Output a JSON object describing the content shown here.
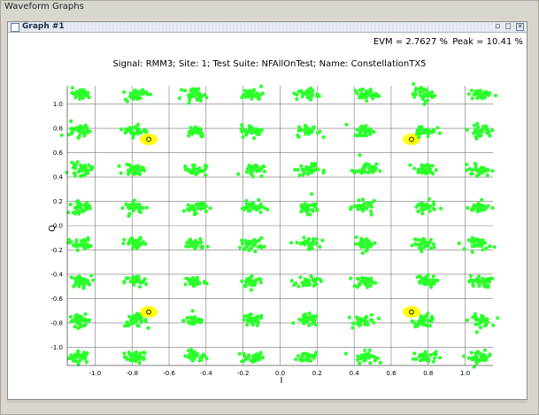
{
  "window": {
    "title": "Waveform Graphs"
  },
  "graph": {
    "title": "Graph #1"
  },
  "stats": {
    "evm": "EVM = 2.7627 %",
    "peak": "Peak = 10.41 %"
  },
  "colors": {
    "points": "#2bff2b",
    "error_area": "#ffff00",
    "reference_marker": "#000000",
    "grid": "#777777"
  },
  "chart_data": {
    "type": "scatter",
    "title": "Signal: RMM3; Site: 1; Test Suite: NFAllOnTest; Name: ConstellationTX5",
    "xlabel": "I",
    "ylabel": "Q",
    "xlim": [
      -1.15,
      1.15
    ],
    "ylim": [
      -1.15,
      1.15
    ],
    "grid": true,
    "x_ticks": [
      "-1.0",
      "-0.8",
      "-0.6",
      "-0.4",
      "-0.2",
      "0.0",
      "0.2",
      "0.4",
      "0.6",
      "0.8",
      "1.0"
    ],
    "y_ticks": [
      "1.0",
      "0.8",
      "0.6",
      "0.4",
      "0.2",
      "0.0",
      "-0.2",
      "-0.4",
      "-0.6",
      "-0.8",
      "-1.0"
    ],
    "x_tick_values": [
      -1.0,
      -0.8,
      -0.6,
      -0.4,
      -0.2,
      0.0,
      0.2,
      0.4,
      0.6,
      0.8,
      1.0
    ],
    "y_tick_values": [
      1.0,
      0.8,
      0.6,
      0.4,
      0.2,
      0.0,
      -0.2,
      -0.4,
      -0.6,
      -0.8,
      -1.0
    ],
    "constellation_levels": [
      -1.08,
      -0.78,
      -0.46,
      -0.15,
      0.15,
      0.46,
      0.78,
      1.08
    ],
    "cluster_spread": 0.03,
    "reference_points": [
      {
        "x": -0.71,
        "y": 0.71
      },
      {
        "x": 0.71,
        "y": 0.71
      },
      {
        "x": -0.71,
        "y": -0.71
      },
      {
        "x": 0.71,
        "y": -0.71
      }
    ],
    "outliers": [
      {
        "x": 0.17,
        "y": 0.26
      },
      {
        "x": 0.43,
        "y": 0.58
      },
      {
        "x": 0.78,
        "y": 1.0
      },
      {
        "x": -1.13,
        "y": 0.86
      }
    ]
  }
}
